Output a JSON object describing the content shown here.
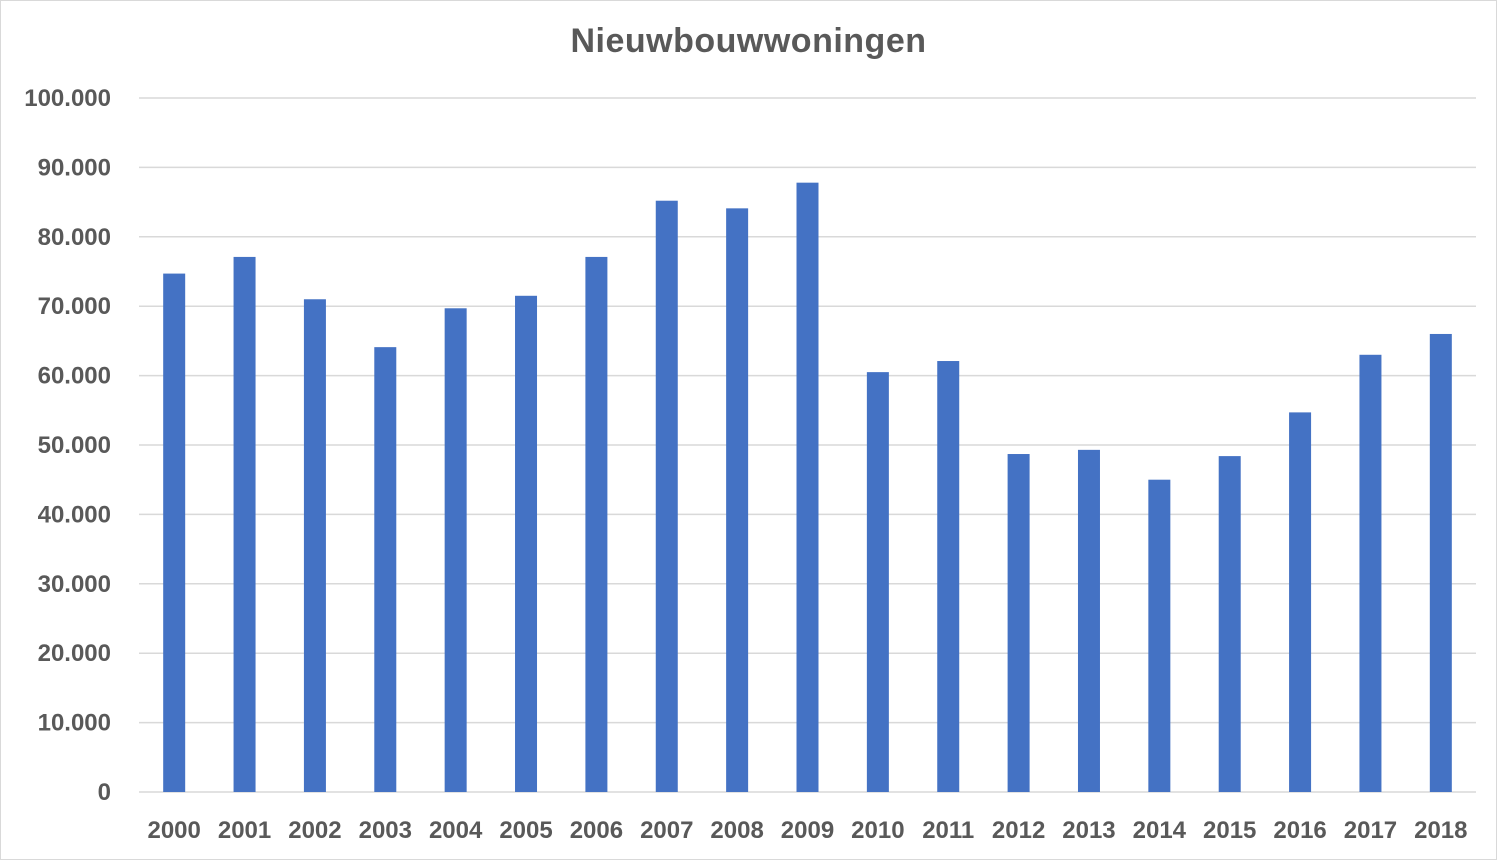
{
  "chart_data": {
    "type": "bar",
    "title": "Nieuwbouwwoningen",
    "xlabel": "",
    "ylabel": "",
    "categories": [
      "2000",
      "2001",
      "2002",
      "2003",
      "2004",
      "2005",
      "2006",
      "2007",
      "2008",
      "2009",
      "2010",
      "2011",
      "2012",
      "2013",
      "2014",
      "2015",
      "2016",
      "2017",
      "2018"
    ],
    "values": [
      74700,
      77100,
      71000,
      64100,
      69700,
      71500,
      77100,
      85200,
      84100,
      87800,
      60500,
      62100,
      48700,
      49300,
      45000,
      48400,
      54700,
      63000,
      66000
    ],
    "ylim": [
      0,
      100000
    ],
    "yticks": [
      0,
      10000,
      20000,
      30000,
      40000,
      50000,
      60000,
      70000,
      80000,
      90000,
      100000
    ],
    "ytick_labels": [
      "0",
      "10.000",
      "20.000",
      "30.000",
      "40.000",
      "50.000",
      "60.000",
      "70.000",
      "80.000",
      "90.000",
      "100.000"
    ],
    "grid": true,
    "legend": "none",
    "colors": {
      "bar": "#4472c4",
      "grid": "#d9d9d9",
      "text": "#595959"
    }
  }
}
